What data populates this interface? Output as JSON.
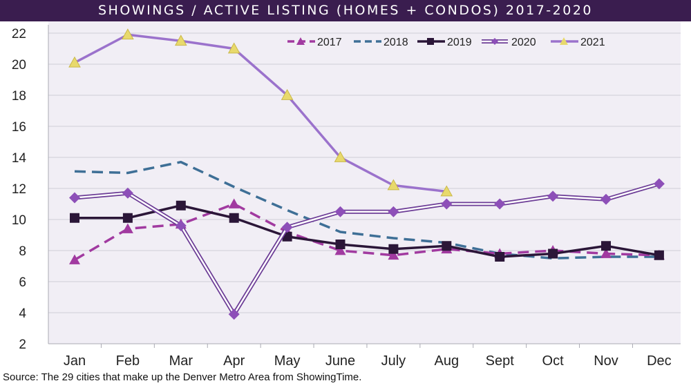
{
  "title": "SHOWINGS / ACTIVE LISTING (HOMES + CONDOS) 2017-2020",
  "source": "Source: The 29 cities that make up the Denver Metro Area from ShowingTime.",
  "colors": {
    "title_bar": "#3a1d4f",
    "plot_background": "#f1eef5",
    "grid": "#cfcfd6"
  },
  "chart_data": {
    "type": "line",
    "categories": [
      "Jan",
      "Feb",
      "Mar",
      "Apr",
      "May",
      "June",
      "July",
      "Aug",
      "Sept",
      "Oct",
      "Nov",
      "Dec"
    ],
    "ylim": [
      2,
      22
    ],
    "yticks": [
      2,
      4,
      6,
      8,
      10,
      12,
      14,
      16,
      18,
      20,
      22
    ],
    "grid": true,
    "legend_position": "top-right",
    "series": [
      {
        "name": "2017",
        "color": "#a13aa0",
        "style": "dashed",
        "marker": "triangle",
        "values": [
          7.4,
          9.4,
          9.7,
          11.0,
          9.2,
          8.0,
          7.7,
          8.1,
          7.8,
          8.0,
          7.8,
          7.7
        ]
      },
      {
        "name": "2018",
        "color": "#3e6f96",
        "style": "dashed",
        "marker": "none",
        "values": [
          13.1,
          13.0,
          13.7,
          12.1,
          10.6,
          9.2,
          8.8,
          8.5,
          7.8,
          7.5,
          7.6,
          7.6
        ]
      },
      {
        "name": "2019",
        "color": "#2b1638",
        "style": "solid",
        "marker": "square",
        "values": [
          10.1,
          10.1,
          10.9,
          10.1,
          8.9,
          8.4,
          8.1,
          8.3,
          7.6,
          7.8,
          8.3,
          7.7
        ]
      },
      {
        "name": "2020",
        "color": "#6c3c96",
        "style": "double",
        "marker": "diamond",
        "marker_color": "#8d4fb8",
        "values": [
          11.4,
          11.7,
          9.6,
          3.9,
          9.5,
          10.5,
          10.5,
          11.0,
          11.0,
          11.5,
          11.3,
          12.3
        ]
      },
      {
        "name": "2021",
        "color": "#9b72cc",
        "style": "solid",
        "marker": "triangle",
        "marker_color": "#e8d96c",
        "values": [
          20.1,
          21.9,
          21.5,
          21.0,
          18.0,
          14.0,
          12.2,
          11.8,
          null,
          null,
          null,
          null
        ]
      }
    ]
  }
}
